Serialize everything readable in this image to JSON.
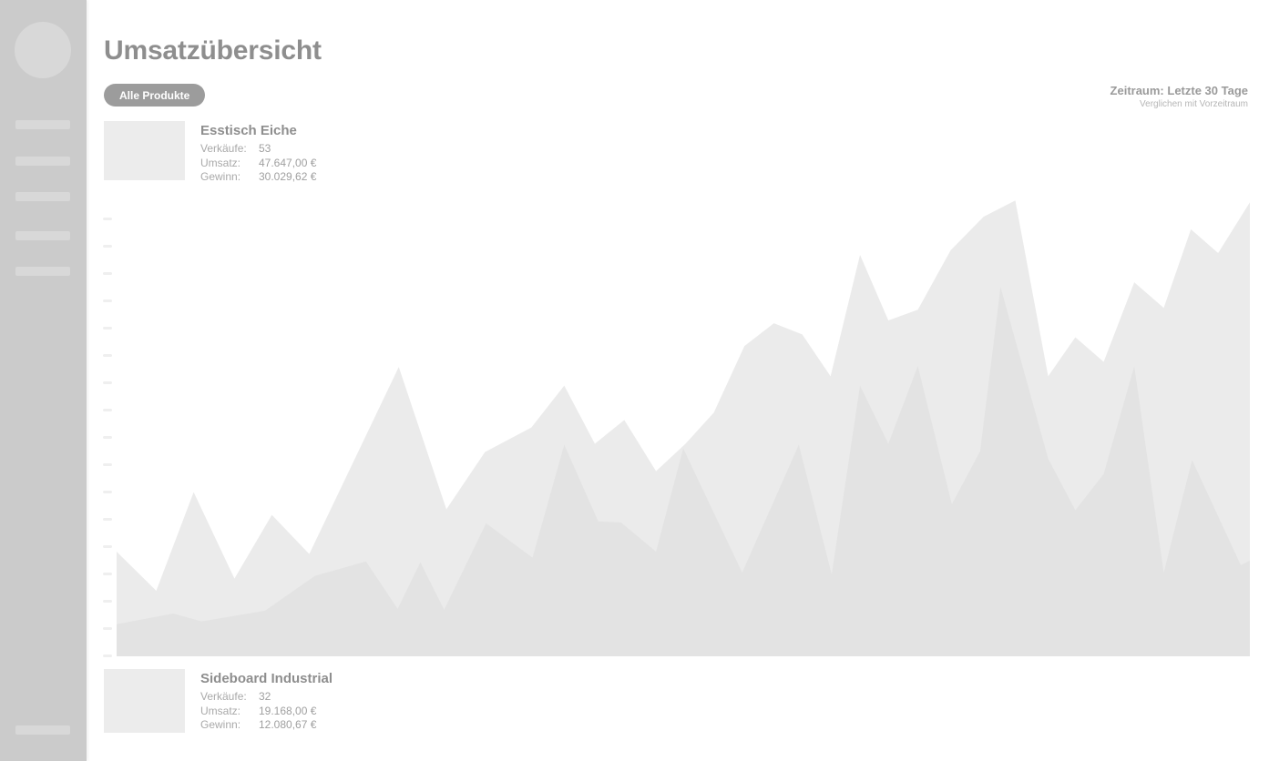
{
  "header": {
    "title": "Umsatzübersicht",
    "filter_button_label": "Alle Produkte",
    "period_label": "Zeitraum: Letzte 30 Tage",
    "period_compare_label": "Verglichen mit Vorzeitraum"
  },
  "products": [
    {
      "name": "Esstisch Eiche",
      "metrics": [
        {
          "label": "Verkäufe:",
          "value": "53"
        },
        {
          "label": "Umsatz:",
          "value": "47.647,00 €"
        },
        {
          "label": "Gewinn:",
          "value": "30.029,62 €"
        }
      ]
    },
    {
      "name": "Sideboard Industrial",
      "metrics": [
        {
          "label": "Verkäufe:",
          "value": "32"
        },
        {
          "label": "Umsatz:",
          "value": "19.168,00 €"
        },
        {
          "label": "Gewinn:",
          "value": "12.080,67 €"
        }
      ]
    }
  ],
  "colors": {
    "sidebar_bg": "#cbcbcb",
    "sidebar_placeholder": "#d8d8d8",
    "heading_text": "#8e8e8e",
    "muted_label": "#a9a9a9",
    "muted_value": "#a0a0a0",
    "pill_bg": "#9c9c9c",
    "pill_text": "#ffffff",
    "thumbnail_bg": "#ececec",
    "tick": "#efefef"
  },
  "chart_data": {
    "type": "area",
    "period": "Letzte 30 Tage",
    "x_unit": "percent_of_period",
    "ylim": [
      0,
      100
    ],
    "axis_value_labels": "none",
    "y_tick_count": 17,
    "legend_position": "none",
    "series": [
      {
        "name": "Esstisch Eiche",
        "color": "#ebebeb",
        "points": [
          [
            0,
            22.5
          ],
          [
            3.5,
            14.1
          ],
          [
            6.8,
            35.3
          ],
          [
            10.4,
            16.7
          ],
          [
            13.7,
            30.4
          ],
          [
            17,
            22
          ],
          [
            24.9,
            62.2
          ],
          [
            29.1,
            31.6
          ],
          [
            32.5,
            43.9
          ],
          [
            36.6,
            49.2
          ],
          [
            39.5,
            58.2
          ],
          [
            42.2,
            45.7
          ],
          [
            44.8,
            50.8
          ],
          [
            47.6,
            39.8
          ],
          [
            50.2,
            45.7
          ],
          [
            52.7,
            52.4
          ],
          [
            55.4,
            66.7
          ],
          [
            58,
            71.6
          ],
          [
            60.5,
            69.2
          ],
          [
            63,
            60.2
          ],
          [
            65.6,
            86.3
          ],
          [
            68.1,
            72.2
          ],
          [
            70.7,
            74.5
          ],
          [
            73.6,
            87.3
          ],
          [
            76.5,
            94.5
          ],
          [
            79.3,
            98
          ],
          [
            82.2,
            60.2
          ],
          [
            84.6,
            68.6
          ],
          [
            87.1,
            63.3
          ],
          [
            89.8,
            80.4
          ],
          [
            92.4,
            74.9
          ],
          [
            94.8,
            91.8
          ],
          [
            97.2,
            86.7
          ],
          [
            100,
            97.6
          ]
        ]
      },
      {
        "name": "Sideboard Industrial",
        "color": "#e3e3e3",
        "points": [
          [
            0,
            6.9
          ],
          [
            5,
            9.2
          ],
          [
            7.5,
            7.5
          ],
          [
            13.1,
            9.8
          ],
          [
            17.5,
            17.3
          ],
          [
            22,
            20.4
          ],
          [
            24.8,
            10.2
          ],
          [
            26.8,
            20.2
          ],
          [
            28.9,
            10
          ],
          [
            32.6,
            28.6
          ],
          [
            36.7,
            21.2
          ],
          [
            39.5,
            45.5
          ],
          [
            42.5,
            29
          ],
          [
            44.5,
            28.8
          ],
          [
            47.6,
            22.5
          ],
          [
            50,
            44.7
          ],
          [
            55.2,
            18
          ],
          [
            60.2,
            45.5
          ],
          [
            63.1,
            17.6
          ],
          [
            65.6,
            58.2
          ],
          [
            68.1,
            45.7
          ],
          [
            70.7,
            62.4
          ],
          [
            73.7,
            32.7
          ],
          [
            76.2,
            44.1
          ],
          [
            78,
            79.4
          ],
          [
            82.2,
            42.5
          ],
          [
            84.6,
            31.4
          ],
          [
            87.1,
            39.2
          ],
          [
            89.8,
            62.4
          ],
          [
            92.4,
            18
          ],
          [
            94.9,
            42.2
          ],
          [
            99.2,
            19.6
          ],
          [
            100,
            20.6
          ]
        ]
      }
    ]
  }
}
